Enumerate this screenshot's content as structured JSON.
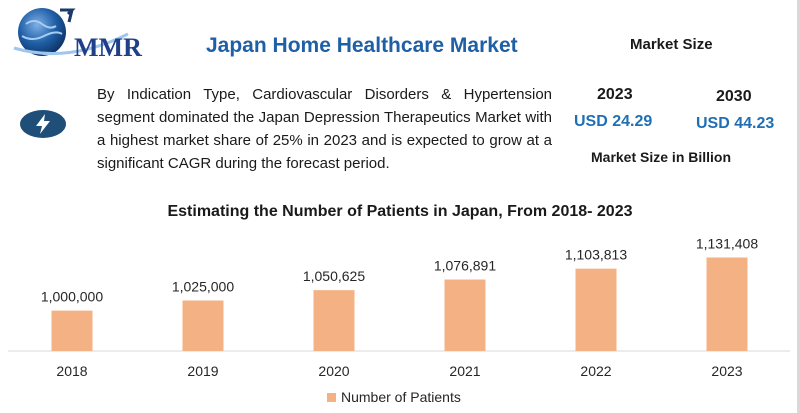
{
  "logo": {
    "text": "MMR"
  },
  "header": {
    "title": "Japan Home Healthcare Market",
    "market_size_heading": "Market Size"
  },
  "summary": {
    "icon": "lightning-bolt-icon",
    "text": "By Indication Type, Cardiovascular Disorders & Hypertension segment dominated the Japan Depression Therapeutics Market with a highest market share of 25% in 2023 and is expected to grow at a significant CAGR during the forecast period."
  },
  "market_size": {
    "year_start": "2023",
    "value_start": "USD 24.29",
    "year_end": "2030",
    "value_end": "USD 44.23",
    "unit_label": "Market Size in Billion"
  },
  "colors": {
    "title_blue": "#1f5fa6",
    "value_blue": "#1f6fb5",
    "bar": "#f4b183",
    "badge": "#1f4e79"
  },
  "chart_data": {
    "type": "bar",
    "title": "Estimating the Number of Patients in Japan, From 2018- 2023",
    "categories": [
      "2018",
      "2019",
      "2020",
      "2021",
      "2022",
      "2023"
    ],
    "series": [
      {
        "name": "Number of Patients",
        "values": [
          1000000,
          1025000,
          1050625,
          1076891,
          1103813,
          1131408
        ]
      }
    ],
    "data_labels": [
      "1,000,000",
      "1,025,000",
      "1,050,625",
      "1,076,891",
      "1,103,813",
      "1,131,408"
    ],
    "ylim": [
      900000,
      1150000
    ],
    "grid": false,
    "legend": "bottom-center"
  }
}
